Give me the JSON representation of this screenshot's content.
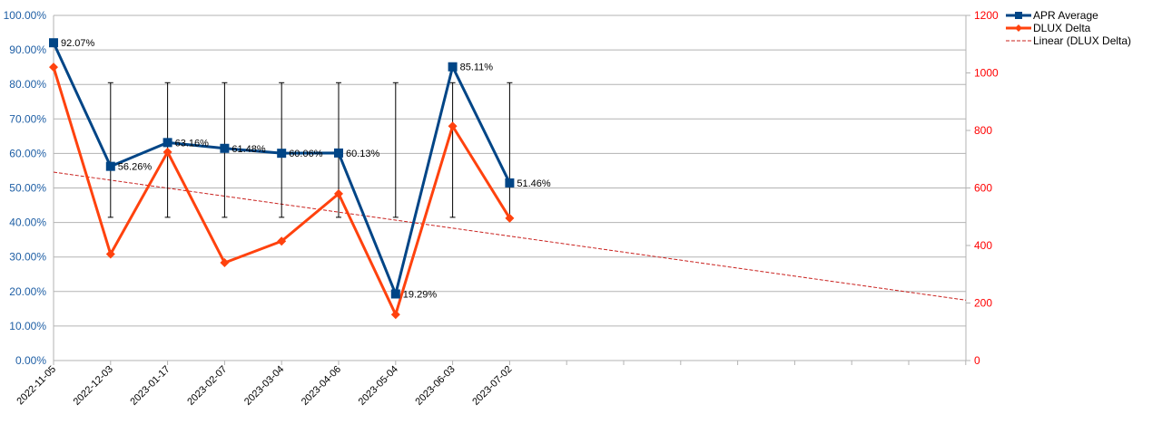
{
  "chart_data": {
    "type": "line",
    "categories": [
      "2022-11-05",
      "2022-12-03",
      "2023-01-17",
      "2023-02-07",
      "2023-03-04",
      "2023-04-06",
      "2023-05-04",
      "2023-06-03",
      "2023-07-02"
    ],
    "series": [
      {
        "name": "APR Average",
        "axis": "left",
        "color": "#004586",
        "marker": "square",
        "values": [
          92.07,
          56.26,
          63.16,
          61.48,
          60.06,
          60.13,
          19.29,
          85.11,
          51.46
        ],
        "labels": [
          "92.07%",
          "56.26%",
          "63.16%",
          "61.48%",
          "60.06%",
          "60.13%",
          "19.29%",
          "85.11%",
          "51.46%"
        ],
        "error_bars": {
          "low": 41.5,
          "high": 80.5
        }
      },
      {
        "name": "DLUX Delta",
        "axis": "right",
        "color": "#ff420e",
        "marker": "diamond",
        "values": [
          1020,
          370,
          725,
          340,
          415,
          580,
          160,
          815,
          495
        ]
      }
    ],
    "trendline": {
      "name": "Linear (DLUX Delta)",
      "color": "#c9211e",
      "style": "dashed",
      "start_value": 655,
      "end_value": 210
    },
    "y_left": {
      "ylim": [
        0,
        100
      ],
      "ticks": [
        "0.00%",
        "10.00%",
        "20.00%",
        "30.00%",
        "40.00%",
        "50.00%",
        "60.00%",
        "70.00%",
        "80.00%",
        "90.00%",
        "100.00%"
      ]
    },
    "y_right": {
      "ylim": [
        0,
        1200
      ],
      "ticks": [
        "0",
        "200",
        "400",
        "600",
        "800",
        "1000",
        "1200"
      ],
      "color": "#ff0000"
    },
    "grid": true,
    "legend_position": "top-right"
  }
}
